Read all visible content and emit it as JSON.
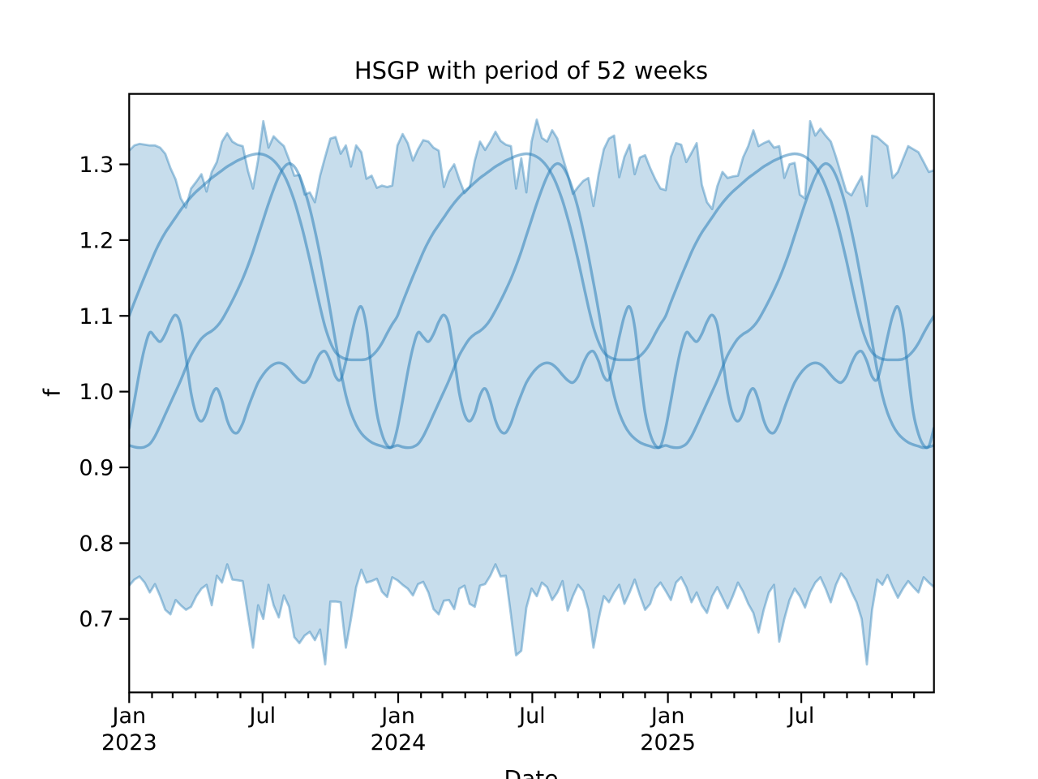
{
  "title": "HSGP with period of 52 weeks",
  "xlabel": "Date",
  "ylabel": "f",
  "colors": {
    "base": "#1f77b4",
    "fill_opacity": 0.25,
    "band_edge_opacity": 0.4,
    "line_opacity": 0.5,
    "axis": "#000000",
    "background": "#ffffff"
  },
  "chart_data": {
    "type": "line",
    "title": "HSGP with period of 52 weeks",
    "xlabel": "Date",
    "ylabel": "f",
    "grid": false,
    "legend": null,
    "x_unit": "weeks since 2023-01-01",
    "xlim_weeks": [
      0,
      156
    ],
    "ylim": [
      0.603,
      1.393
    ],
    "yticks": [
      {
        "value": 0.7,
        "label": "0.7"
      },
      {
        "value": 0.8,
        "label": "0.8"
      },
      {
        "value": 0.9,
        "label": "0.9"
      },
      {
        "value": 1.0,
        "label": "1.0"
      },
      {
        "value": 1.1,
        "label": "1.1"
      },
      {
        "value": 1.2,
        "label": "1.2"
      },
      {
        "value": 1.3,
        "label": "1.3"
      }
    ],
    "xticks_major": [
      {
        "week": 0,
        "line1": "Jan",
        "line2": "2023"
      },
      {
        "week": 25.857,
        "line1": "Jul",
        "line2": ""
      },
      {
        "week": 52.143,
        "line1": "Jan",
        "line2": "2024"
      },
      {
        "week": 78.143,
        "line1": "Jul",
        "line2": ""
      },
      {
        "week": 104.429,
        "line1": "Jan",
        "line2": "2025"
      },
      {
        "week": 130.286,
        "line1": "Jul",
        "line2": ""
      }
    ],
    "xticks_minor_weeks": [
      4.429,
      8.429,
      12.857,
      17.143,
      21.571,
      30.286,
      34.714,
      39.0,
      43.429,
      47.714,
      56.571,
      60.714,
      65.143,
      69.429,
      73.857,
      82.571,
      87.0,
      91.286,
      95.714,
      100.0,
      108.857,
      112.857,
      117.286,
      121.571,
      126.0,
      134.714,
      139.143,
      143.429,
      147.857,
      152.143
    ],
    "period_weeks": 52,
    "samples": [
      {
        "name": "sample-1",
        "period_values": [
          1.1,
          1.118,
          1.135,
          1.152,
          1.168,
          1.184,
          1.198,
          1.21,
          1.22,
          1.23,
          1.24,
          1.249,
          1.257,
          1.264,
          1.27,
          1.276,
          1.282,
          1.287,
          1.292,
          1.297,
          1.301,
          1.305,
          1.308,
          1.311,
          1.313,
          1.314,
          1.313,
          1.31,
          1.305,
          1.297,
          1.286,
          1.271,
          1.252,
          1.229,
          1.203,
          1.174,
          1.143,
          1.112,
          1.085,
          1.065,
          1.052,
          1.046,
          1.043,
          1.042,
          1.042,
          1.042,
          1.043,
          1.047,
          1.054,
          1.064,
          1.077,
          1.089,
          1.1
        ]
      },
      {
        "name": "sample-2",
        "period_values": [
          0.929,
          0.927,
          0.926,
          0.927,
          0.931,
          0.941,
          0.955,
          0.97,
          0.985,
          1.0,
          1.015,
          1.032,
          1.048,
          1.06,
          1.07,
          1.076,
          1.08,
          1.086,
          1.095,
          1.107,
          1.12,
          1.134,
          1.149,
          1.166,
          1.185,
          1.206,
          1.227,
          1.248,
          1.267,
          1.284,
          1.296,
          1.301,
          1.297,
          1.285,
          1.266,
          1.242,
          1.213,
          1.18,
          1.144,
          1.106,
          1.066,
          1.028,
          0.995,
          0.972,
          0.956,
          0.945,
          0.938,
          0.933,
          0.93,
          0.928,
          0.926,
          0.927,
          0.929
        ]
      },
      {
        "name": "sample-3",
        "period_values": [
          0.952,
          0.988,
          1.026,
          1.058,
          1.078,
          1.072,
          1.066,
          1.076,
          1.092,
          1.101,
          1.088,
          1.045,
          0.998,
          0.97,
          0.961,
          0.972,
          0.995,
          1.004,
          0.988,
          0.962,
          0.948,
          0.946,
          0.958,
          0.978,
          0.996,
          1.012,
          1.023,
          1.031,
          1.036,
          1.038,
          1.036,
          1.03,
          1.022,
          1.015,
          1.012,
          1.02,
          1.037,
          1.05,
          1.053,
          1.04,
          1.02,
          1.016,
          1.04,
          1.072,
          1.1,
          1.112,
          1.085,
          1.025,
          0.972,
          0.944,
          0.929,
          0.928,
          0.952
        ]
      }
    ],
    "band": {
      "upper": [
        1.318,
        1.325,
        1.327,
        1.326,
        1.325,
        1.325,
        1.322,
        1.314,
        1.295,
        1.28,
        1.255,
        1.243,
        1.268,
        1.277,
        1.287,
        1.264,
        1.29,
        1.303,
        1.33,
        1.341,
        1.33,
        1.326,
        1.324,
        1.292,
        1.268,
        1.306,
        1.357,
        1.322,
        1.337,
        1.33,
        1.324,
        1.306,
        1.285,
        1.286,
        1.26,
        1.263,
        1.25,
        1.285,
        1.31,
        1.334,
        1.336,
        1.314,
        1.325,
        1.297,
        1.325,
        1.316,
        1.281,
        1.285,
        1.269,
        1.272,
        1.27,
        1.272,
        1.325,
        1.34,
        1.328,
        1.305,
        1.32,
        1.332,
        1.33,
        1.322,
        1.318,
        1.27,
        1.29,
        1.3,
        1.28,
        1.262,
        1.27,
        1.305,
        1.33,
        1.319,
        1.33,
        1.343,
        1.331,
        1.326,
        1.324,
        1.268,
        1.308,
        1.263,
        1.33,
        1.359,
        1.335,
        1.33,
        1.345,
        1.334,
        1.31,
        1.287,
        1.261,
        1.27,
        1.278,
        1.282,
        1.245,
        1.287,
        1.32,
        1.334,
        1.338,
        1.283,
        1.31,
        1.326,
        1.287,
        1.309,
        1.312,
        1.295,
        1.28,
        1.268,
        1.266,
        1.31,
        1.328,
        1.326,
        1.303,
        1.315,
        1.328,
        1.273,
        1.25,
        1.241,
        1.271,
        1.29,
        1.282,
        1.284,
        1.285,
        1.309,
        1.324,
        1.345,
        1.324,
        1.328,
        1.331,
        1.322,
        1.324,
        1.282,
        1.3,
        1.302,
        1.26,
        1.255,
        1.357,
        1.338,
        1.347,
        1.338,
        1.33,
        1.31,
        1.287,
        1.264,
        1.259,
        1.272,
        1.284,
        1.245,
        1.338,
        1.336,
        1.33,
        1.324,
        1.282,
        1.29,
        1.307,
        1.324,
        1.32,
        1.316,
        1.303,
        1.29,
        1.292
      ],
      "lower": [
        0.744,
        0.752,
        0.756,
        0.748,
        0.735,
        0.746,
        0.73,
        0.712,
        0.706,
        0.725,
        0.718,
        0.712,
        0.716,
        0.73,
        0.74,
        0.745,
        0.718,
        0.757,
        0.748,
        0.772,
        0.752,
        0.751,
        0.75,
        0.706,
        0.662,
        0.718,
        0.7,
        0.745,
        0.718,
        0.702,
        0.731,
        0.716,
        0.676,
        0.668,
        0.678,
        0.683,
        0.672,
        0.686,
        0.64,
        0.723,
        0.723,
        0.722,
        0.662,
        0.7,
        0.742,
        0.765,
        0.748,
        0.75,
        0.753,
        0.736,
        0.729,
        0.755,
        0.751,
        0.745,
        0.74,
        0.731,
        0.746,
        0.749,
        0.735,
        0.713,
        0.706,
        0.724,
        0.725,
        0.713,
        0.74,
        0.744,
        0.72,
        0.716,
        0.744,
        0.746,
        0.757,
        0.772,
        0.756,
        0.757,
        0.705,
        0.652,
        0.658,
        0.715,
        0.74,
        0.73,
        0.748,
        0.742,
        0.725,
        0.735,
        0.75,
        0.711,
        0.73,
        0.745,
        0.737,
        0.712,
        0.662,
        0.7,
        0.73,
        0.722,
        0.735,
        0.745,
        0.72,
        0.735,
        0.752,
        0.731,
        0.712,
        0.72,
        0.74,
        0.748,
        0.737,
        0.725,
        0.748,
        0.755,
        0.742,
        0.722,
        0.735,
        0.718,
        0.708,
        0.73,
        0.742,
        0.728,
        0.714,
        0.73,
        0.748,
        0.736,
        0.72,
        0.708,
        0.682,
        0.712,
        0.735,
        0.745,
        0.67,
        0.7,
        0.725,
        0.74,
        0.73,
        0.715,
        0.735,
        0.748,
        0.755,
        0.74,
        0.722,
        0.745,
        0.76,
        0.752,
        0.736,
        0.722,
        0.7,
        0.64,
        0.712,
        0.752,
        0.745,
        0.758,
        0.742,
        0.728,
        0.74,
        0.75,
        0.742,
        0.735,
        0.755,
        0.748,
        0.742
      ]
    }
  }
}
